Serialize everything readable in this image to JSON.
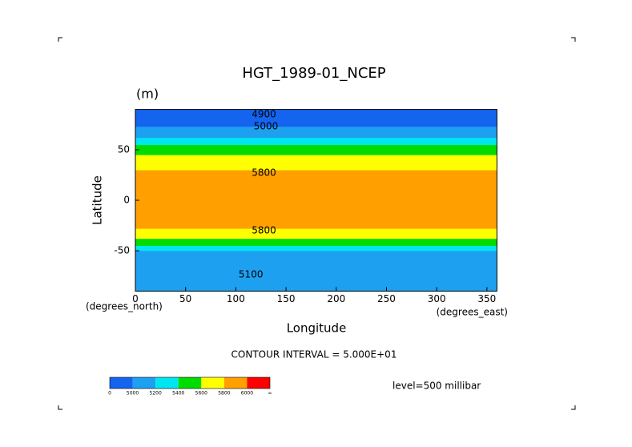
{
  "chart_data": {
    "type": "contour",
    "title": "HGT_1989-01_NCEP",
    "units": "(m)",
    "xlabel": "Longitude",
    "ylabel": "Latitude",
    "x_unit_label": "(degrees_east)",
    "y_unit_label": "(degrees_north)",
    "xlim": [
      0,
      360
    ],
    "ylim": [
      -90,
      90
    ],
    "xticks": [
      0,
      50,
      100,
      150,
      200,
      250,
      300,
      350
    ],
    "yticks": [
      -50,
      0,
      50
    ],
    "contour_interval_label": "CONTOUR INTERVAL = 5.000E+01",
    "level_label": "level=500 millibar",
    "colorbar_ticks": [
      0,
      5000,
      5200,
      5400,
      5600,
      5800,
      6000,
      {
        "value": null,
        "label": "∞"
      }
    ],
    "colors": [
      "#1464f0",
      "#1ea0f0",
      "#00e6f0",
      "#00dc00",
      "#ffff00",
      "#ffa000",
      "#ff0000"
    ],
    "profile": {
      "lat": [
        -90,
        -70,
        -50,
        -45,
        -38,
        -28,
        0,
        30,
        45,
        55,
        62,
        73,
        90
      ],
      "height": [
        5050,
        5120,
        5200,
        5400,
        5600,
        5800,
        5860,
        5800,
        5600,
        5400,
        5200,
        5000,
        4920
      ]
    },
    "contour_labels": [
      {
        "label": "4900",
        "lon": 128,
        "lat": 85
      },
      {
        "label": "5000",
        "lon": 130,
        "lat": 73
      },
      {
        "label": "5800",
        "lon": 128,
        "lat": 27
      },
      {
        "label": "5800",
        "lon": 128,
        "lat": -30
      },
      {
        "label": "5100",
        "lon": 115,
        "lat": -74
      }
    ]
  }
}
